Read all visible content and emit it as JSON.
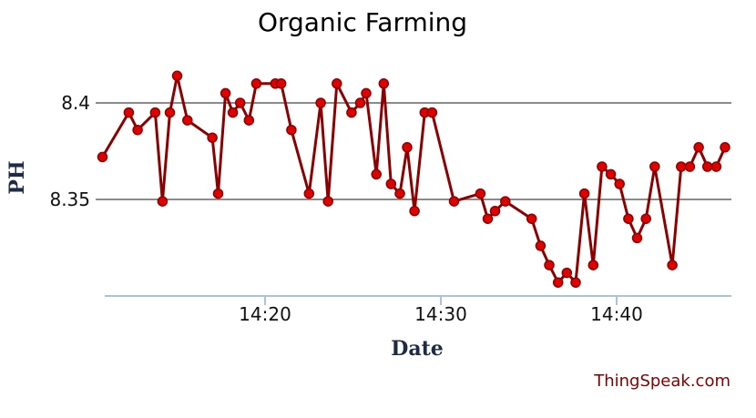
{
  "chart_data": {
    "type": "line",
    "title": "Organic Farming",
    "xlabel": "Date",
    "ylabel": "PH",
    "credit": "ThingSpeak.com",
    "x_ticks": [
      "14:20",
      "14:30",
      "14:40"
    ],
    "y_ticks": [
      "8.4",
      "8.35"
    ],
    "ylim": [
      8.3,
      8.425
    ],
    "grid": true,
    "line_color": "#8b0000",
    "marker_color": "#e00000",
    "series": [
      {
        "points": [
          [
            "14:10:45",
            8.372
          ],
          [
            "14:12:15",
            8.395
          ],
          [
            "14:12:45",
            8.386
          ],
          [
            "14:13:45",
            8.395
          ],
          [
            "14:14:10",
            8.349
          ],
          [
            "14:14:35",
            8.395
          ],
          [
            "14:15:00",
            8.414
          ],
          [
            "14:15:35",
            8.391
          ],
          [
            "14:17:00",
            8.382
          ],
          [
            "14:17:20",
            8.353
          ],
          [
            "14:17:45",
            8.405
          ],
          [
            "14:18:10",
            8.395
          ],
          [
            "14:18:35",
            8.4
          ],
          [
            "14:19:05",
            8.391
          ],
          [
            "14:19:30",
            8.41
          ],
          [
            "14:20:35",
            8.41
          ],
          [
            "14:20:55",
            8.41
          ],
          [
            "14:21:30",
            8.386
          ],
          [
            "14:22:30",
            8.353
          ],
          [
            "14:23:10",
            8.4
          ],
          [
            "14:23:35",
            8.349
          ],
          [
            "14:24:05",
            8.41
          ],
          [
            "14:24:55",
            8.395
          ],
          [
            "14:25:25",
            8.4
          ],
          [
            "14:25:45",
            8.405
          ],
          [
            "14:26:20",
            8.363
          ],
          [
            "14:26:45",
            8.41
          ],
          [
            "14:27:10",
            8.358
          ],
          [
            "14:27:40",
            8.353
          ],
          [
            "14:28:05",
            8.377
          ],
          [
            "14:28:30",
            8.344
          ],
          [
            "14:29:05",
            8.395
          ],
          [
            "14:29:30",
            8.395
          ],
          [
            "14:30:45",
            8.349
          ],
          [
            "14:32:15",
            8.353
          ],
          [
            "14:32:40",
            8.34
          ],
          [
            "14:33:05",
            8.344
          ],
          [
            "14:33:40",
            8.349
          ],
          [
            "14:35:10",
            8.34
          ],
          [
            "14:35:40",
            8.326
          ],
          [
            "14:36:10",
            8.316
          ],
          [
            "14:36:40",
            8.307
          ],
          [
            "14:37:10",
            8.312
          ],
          [
            "14:37:40",
            8.307
          ],
          [
            "14:38:10",
            8.353
          ],
          [
            "14:38:40",
            8.316
          ],
          [
            "14:39:10",
            8.367
          ],
          [
            "14:39:40",
            8.363
          ],
          [
            "14:40:10",
            8.358
          ],
          [
            "14:40:40",
            8.34
          ],
          [
            "14:41:10",
            8.33
          ],
          [
            "14:41:40",
            8.34
          ],
          [
            "14:42:10",
            8.367
          ],
          [
            "14:43:10",
            8.316
          ],
          [
            "14:43:40",
            8.367
          ],
          [
            "14:44:10",
            8.367
          ],
          [
            "14:44:40",
            8.377
          ],
          [
            "14:45:10",
            8.367
          ],
          [
            "14:45:40",
            8.367
          ],
          [
            "14:46:10",
            8.377
          ]
        ]
      }
    ]
  }
}
